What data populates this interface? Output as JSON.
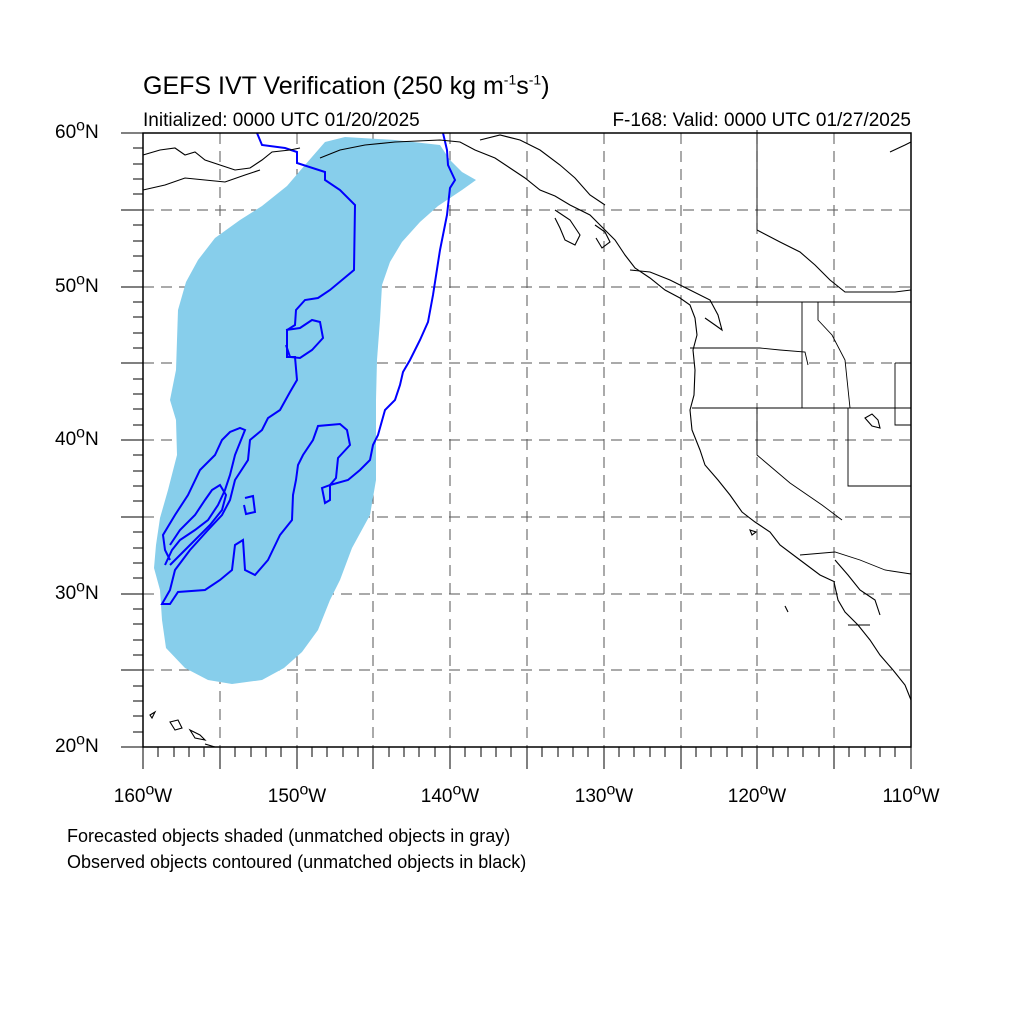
{
  "title": {
    "text": "GEFS IVT Verification (250 kg m",
    "sup1": "-1",
    "mid": "s",
    "sup2": "-1",
    "end": ")"
  },
  "subtitle_left": "Initialized: 0000 UTC 01/20/2025",
  "subtitle_right": "F-168: Valid: 0000 UTC 01/27/2025",
  "lat_labels": [
    {
      "deg": "60",
      "suffix": "N"
    },
    {
      "deg": "50",
      "suffix": "N"
    },
    {
      "deg": "40",
      "suffix": "N"
    },
    {
      "deg": "30",
      "suffix": "N"
    },
    {
      "deg": "20",
      "suffix": "N"
    }
  ],
  "lon_labels": [
    {
      "deg": "160",
      "suffix": "W"
    },
    {
      "deg": "150",
      "suffix": "W"
    },
    {
      "deg": "140",
      "suffix": "W"
    },
    {
      "deg": "130",
      "suffix": "W"
    },
    {
      "deg": "120",
      "suffix": "W"
    },
    {
      "deg": "110",
      "suffix": "W"
    }
  ],
  "notes": {
    "forecast": "Forecasted objects shaded (unmatched objects in gray)",
    "observed": "Observed objects contoured (unmatched objects in black)"
  },
  "map": {
    "lon_range": [
      -160,
      -110
    ],
    "lat_range": [
      20,
      60
    ],
    "forecast_object_color": "#87ceeb",
    "observed_contour_color": "#0000ff",
    "coastline_color": "#000000"
  }
}
